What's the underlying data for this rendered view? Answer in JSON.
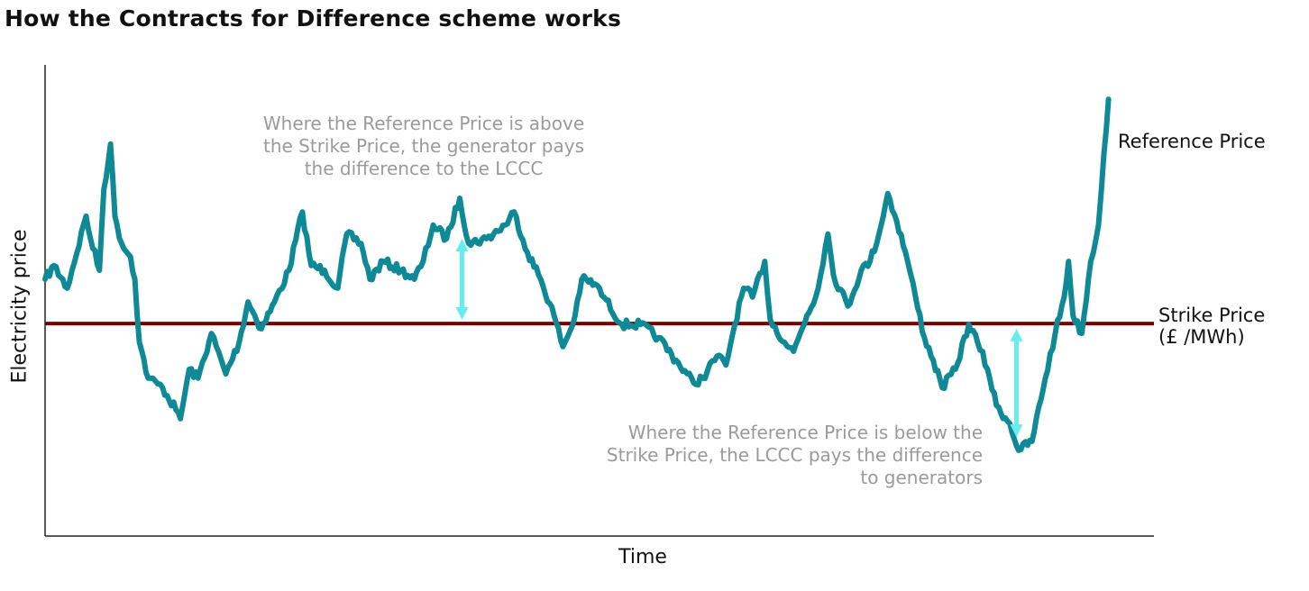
{
  "chart_data": {
    "type": "line",
    "title": "How the Contracts for Difference scheme works",
    "xlabel": "Time",
    "ylabel": "Electricity price",
    "xlim": [
      0,
      100
    ],
    "ylim": [
      0,
      100
    ],
    "grid": false,
    "series": [
      {
        "name": "Reference Price",
        "color": "#0e8995",
        "x": [
          0,
          0.8,
          2.0,
          3.7,
          4.1,
          4.9,
          5.3,
          5.9,
          6.3,
          6.9,
          7.7,
          8.1,
          8.5,
          9.3,
          10.6,
          11.8,
          12.2,
          13.0,
          13.8,
          15.0,
          16.3,
          17.5,
          18.3,
          19.5,
          20.7,
          22.0,
          23.2,
          24.0,
          25.2,
          26.4,
          27.2,
          28.5,
          29.3,
          30.5,
          32.1,
          33.3,
          34.1,
          35.0,
          36.2,
          37.4,
          38.2,
          39.8,
          41.5,
          42.3,
          43.5,
          44.7,
          45.9,
          46.7,
          47.6,
          48.4,
          49.6,
          50.4,
          52.0,
          53.7,
          55.3,
          56.9,
          58.5,
          59.3,
          60.6,
          61.4,
          62.2,
          63.0,
          63.8,
          64.9,
          65.4,
          66.7,
          67.5,
          68.7,
          69.5,
          70.6,
          71.1,
          72.4,
          73.6,
          74.4,
          75.2,
          76.0,
          76.8,
          77.6,
          78.5,
          79.3,
          80.1,
          80.9,
          82.1,
          83.3,
          84.1,
          85.0,
          85.8,
          87.0,
          87.8,
          89.0,
          90.2,
          91.1,
          91.9,
          92.3,
          92.7,
          93.5,
          94.3,
          95.0,
          95.5,
          95.9
        ],
        "y": [
          54.5,
          57.4,
          52.6,
          67.9,
          63.1,
          56.4,
          73.6,
          83.2,
          67.9,
          62.1,
          59.3,
          54.5,
          41.1,
          33.5,
          31.5,
          26.8,
          24.9,
          35.4,
          33.5,
          43.0,
          34.4,
          41.1,
          49.7,
          44.0,
          49.7,
          56.4,
          68.8,
          57.4,
          56.4,
          52.6,
          64.1,
          62.1,
          54.5,
          58.3,
          56.4,
          54.5,
          58.3,
          66.0,
          63.1,
          71.7,
          62.1,
          63.1,
          66.0,
          68.8,
          60.2,
          54.5,
          46.8,
          40.2,
          44.9,
          54.5,
          53.5,
          50.7,
          44.9,
          44.9,
          42.1,
          37.3,
          32.5,
          33.5,
          38.2,
          36.3,
          44.9,
          52.6,
          50.7,
          58.3,
          45.9,
          41.1,
          39.2,
          46.8,
          50.7,
          64.1,
          55.4,
          48.8,
          56.4,
          58.3,
          64.1,
          72.7,
          66.9,
          60.2,
          50.7,
          42.1,
          37.3,
          31.5,
          35.4,
          44.9,
          41.1,
          35.4,
          27.7,
          23.9,
          18.2,
          20.1,
          33.5,
          43.0,
          50.7,
          58.3,
          46.8,
          43.0,
          58.3,
          66.0,
          81.3,
          92.7
        ]
      }
    ],
    "strike_price": {
      "value": 45.1,
      "color": "#7a0000",
      "label_line1": "Strike Price",
      "label_line2": "(£ /MWh)"
    },
    "reference_label": "Reference Price",
    "arrows": [
      {
        "x": 37.6,
        "y_from": 63.1,
        "y_to": 45.9,
        "color": "#66eeee"
      },
      {
        "x": 87.6,
        "y_from": 44.0,
        "y_to": 21.0,
        "color": "#66eeee"
      }
    ],
    "annotations": {
      "above": [
        "Where the Reference Price is above",
        "the Strike Price, the generator pays",
        "the difference to the LCCC"
      ],
      "below": [
        "Where the Reference Price is below the",
        "Strike Price, the LCCC pays the difference",
        "to generators"
      ]
    }
  }
}
